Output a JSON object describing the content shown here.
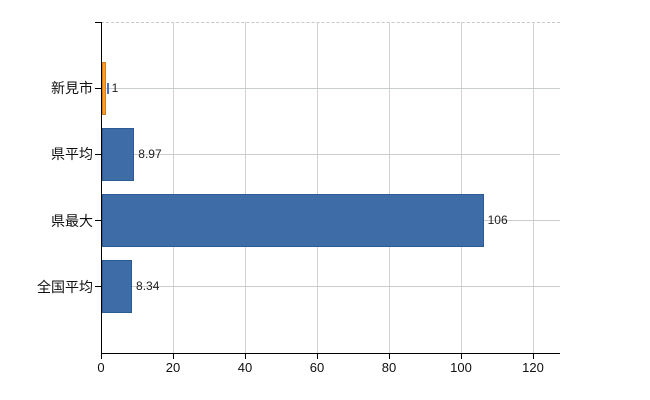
{
  "chart_data": {
    "type": "bar",
    "orientation": "horizontal",
    "categories": [
      "新見市",
      "県平均",
      "県最大",
      "全国平均"
    ],
    "values": [
      1,
      8.97,
      106,
      8.34
    ],
    "value_labels": [
      "1",
      "8.97",
      "106",
      "8.34"
    ],
    "x_tick_values": [
      0,
      20,
      40,
      60,
      80,
      100,
      120
    ],
    "x_tick_labels": [
      "0",
      "20",
      "40",
      "60",
      "80",
      "100",
      "120"
    ],
    "xlim": [
      0,
      127.5
    ],
    "grid": true,
    "legend_position": "none",
    "bar_fill_colors": [
      "#f5a02e",
      "#3d6ca6",
      "#3d6ca6",
      "#3d6ca6"
    ],
    "bar_border_colors": [
      "#dc7e12",
      "#2b5b95",
      "#2b5b95",
      "#2b5b95"
    ],
    "highlight_index": 0,
    "marker_color": "#4d6fc0",
    "axis_color": "#000000",
    "gridline_v_color": "#d2d2d2",
    "gridline_h_color": "#c8cec8",
    "text_color": "#111111",
    "value_text_color": "#222222",
    "background_color": "#ffffff"
  }
}
